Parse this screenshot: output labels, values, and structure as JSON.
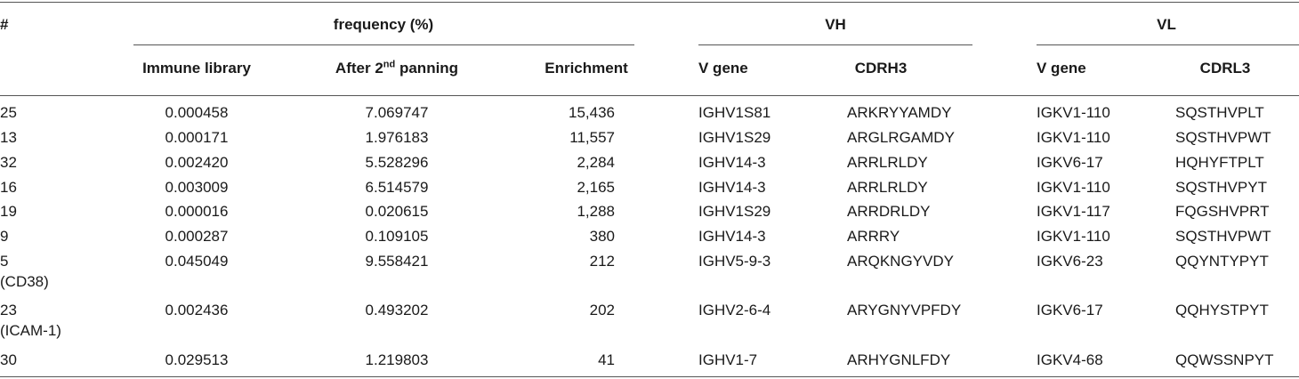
{
  "table": {
    "group_headers": {
      "hash": "#",
      "frequency": "frequency (%)",
      "vh": "VH",
      "vl": "VL"
    },
    "columns": {
      "immune_library": "Immune library",
      "after_panning_prefix": "After 2",
      "after_panning_sup": "nd",
      "after_panning_suffix": " panning",
      "enrichment": "Enrichment",
      "vh_vgene": "V gene",
      "cdrh3": "CDRH3",
      "vl_vgene": "V gene",
      "cdrl3": "CDRL3"
    },
    "rows": [
      {
        "id": "25",
        "note": "",
        "immune": "0.000458",
        "after": "7.069747",
        "enrich": "15,436",
        "vh_gene": "IGHV1S81",
        "cdrh3": "ARKRYYAMDY",
        "vl_gene": "IGKV1-110",
        "cdrl3": "SQSTHVPLT"
      },
      {
        "id": "13",
        "note": "",
        "immune": "0.000171",
        "after": "1.976183",
        "enrich": "11,557",
        "vh_gene": "IGHV1S29",
        "cdrh3": "ARGLRGAMDY",
        "vl_gene": "IGKV1-110",
        "cdrl3": "SQSTHVPWT"
      },
      {
        "id": "32",
        "note": "",
        "immune": "0.002420",
        "after": "5.528296",
        "enrich": "2,284",
        "vh_gene": "IGHV14-3",
        "cdrh3": "ARRLRLDY",
        "vl_gene": "IGKV6-17",
        "cdrl3": "HQHYFTPLT"
      },
      {
        "id": "16",
        "note": "",
        "immune": "0.003009",
        "after": "6.514579",
        "enrich": "2,165",
        "vh_gene": "IGHV14-3",
        "cdrh3": "ARRLRLDY",
        "vl_gene": "IGKV1-110",
        "cdrl3": "SQSTHVPYT"
      },
      {
        "id": "19",
        "note": "",
        "immune": "0.000016",
        "after": "0.020615",
        "enrich": "1,288",
        "vh_gene": "IGHV1S29",
        "cdrh3": "ARRDRLDY",
        "vl_gene": "IGKV1-117",
        "cdrl3": "FQGSHVPRT"
      },
      {
        "id": "9",
        "note": "",
        "immune": "0.000287",
        "after": "0.109105",
        "enrich": "380",
        "vh_gene": "IGHV14-3",
        "cdrh3": "ARRRY",
        "vl_gene": "IGKV1-110",
        "cdrl3": "SQSTHVPWT"
      },
      {
        "id": "5",
        "note": "(CD38)",
        "immune": "0.045049",
        "after": "9.558421",
        "enrich": "212",
        "vh_gene": "IGHV5-9-3",
        "cdrh3": "ARQKNGYVDY",
        "vl_gene": "IGKV6-23",
        "cdrl3": "QQYNTYPYT"
      },
      {
        "id": "23",
        "note": "(ICAM-1)",
        "immune": "0.002436",
        "after": "0.493202",
        "enrich": "202",
        "vh_gene": "IGHV2-6-4",
        "cdrh3": "ARYGNYVPFDY",
        "vl_gene": "IGKV6-17",
        "cdrl3": "QQHYSTPYT"
      },
      {
        "id": "30",
        "note": "",
        "immune": "0.029513",
        "after": "1.219803",
        "enrich": "41",
        "vh_gene": "IGHV1-7",
        "cdrh3": "ARHYGNLFDY",
        "vl_gene": "IGKV4-68",
        "cdrl3": "QQWSSNPYT"
      }
    ]
  }
}
